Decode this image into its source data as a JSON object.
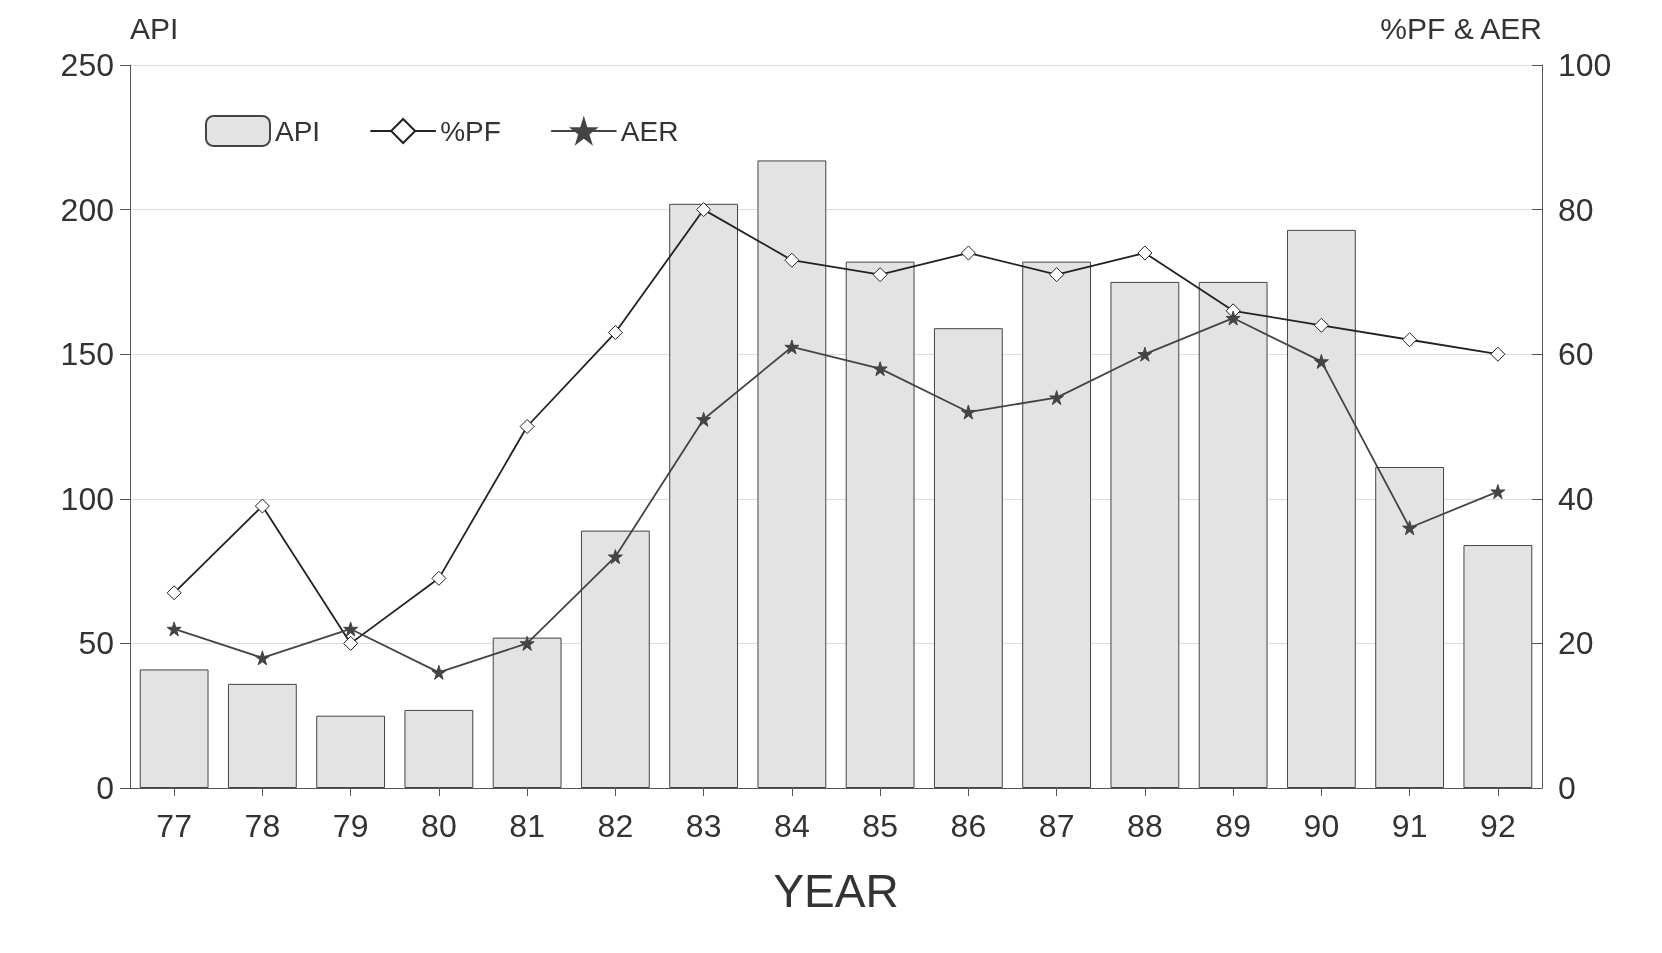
{
  "chart_data": {
    "type": "bar",
    "xlabel": "YEAR",
    "ylabel": "API",
    "y2label": "%PF & AER",
    "categories": [
      "77",
      "78",
      "79",
      "80",
      "81",
      "82",
      "83",
      "84",
      "85",
      "86",
      "87",
      "88",
      "89",
      "90",
      "91",
      "92"
    ],
    "series": [
      {
        "name": "API",
        "color": "#e3e3e3",
        "values": [
          41,
          36,
          25,
          27,
          52,
          89,
          202,
          217,
          182,
          159,
          182,
          175,
          175,
          193,
          111,
          84
        ]
      },
      {
        "name": "%PF",
        "type": "line",
        "axis": "y2",
        "marker": "diamond",
        "color": "#222222",
        "values": [
          27,
          39,
          20,
          29,
          50,
          63,
          80,
          73,
          71,
          74,
          71,
          74,
          66,
          64,
          62,
          60
        ]
      },
      {
        "name": "AER",
        "type": "line",
        "axis": "y2",
        "marker": "star",
        "color": "#444444",
        "values": [
          22,
          18,
          22,
          16,
          20,
          32,
          51,
          61,
          58,
          52,
          54,
          60,
          65,
          59,
          36,
          41
        ]
      }
    ],
    "ylim": [
      0,
      250
    ],
    "yticks": [
      0,
      50,
      100,
      150,
      200,
      250
    ],
    "y2lim": [
      0,
      100
    ],
    "y2ticks": [
      0,
      20,
      40,
      60,
      80,
      100
    ],
    "grid": "y",
    "legend": "top left",
    "line_style": "solid"
  }
}
